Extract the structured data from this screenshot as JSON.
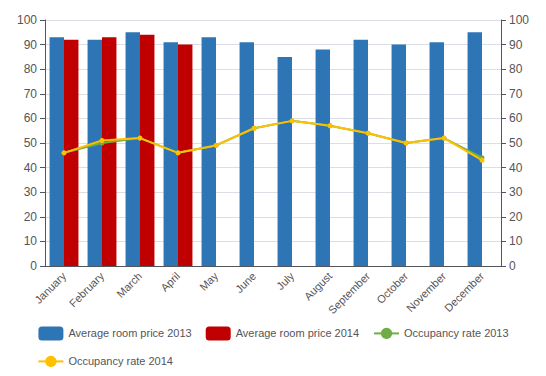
{
  "chart_data": {
    "type": "bar",
    "categories": [
      "January",
      "February",
      "March",
      "April",
      "May",
      "June",
      "July",
      "August",
      "September",
      "October",
      "November",
      "December"
    ],
    "series": [
      {
        "name": "Average room price 2013",
        "type": "bar",
        "color": "#2E75B6",
        "values": [
          93,
          92,
          95,
          91,
          93,
          91,
          85,
          88,
          92,
          90,
          91,
          95
        ]
      },
      {
        "name": "Average room price 2014",
        "type": "bar",
        "color": "#C00000",
        "values": [
          92,
          93,
          94,
          90,
          null,
          null,
          null,
          null,
          null,
          null,
          null,
          null
        ]
      },
      {
        "name": "Occupancy rate 2013",
        "type": "line",
        "axis": "y2",
        "marker": "circle",
        "color": "#70AD47",
        "values": [
          46,
          50,
          52,
          46,
          49,
          56,
          59,
          57,
          54,
          50,
          52,
          44
        ]
      },
      {
        "name": "Occupancy rate 2014",
        "type": "line",
        "axis": "y2",
        "marker": "circle",
        "color": "#FFC000",
        "values": [
          46,
          51,
          52,
          46,
          49,
          56,
          59,
          57,
          54,
          50,
          52,
          43
        ]
      }
    ],
    "ylim": [
      0,
      100
    ],
    "yticks": [
      0,
      10,
      20,
      30,
      40,
      50,
      60,
      70,
      80,
      90,
      100
    ],
    "y2lim": [
      0,
      100
    ],
    "y2ticks": [
      0,
      10,
      20,
      30,
      40,
      50,
      60,
      70,
      80,
      90,
      100
    ],
    "grid": true,
    "legend": "bottom"
  }
}
